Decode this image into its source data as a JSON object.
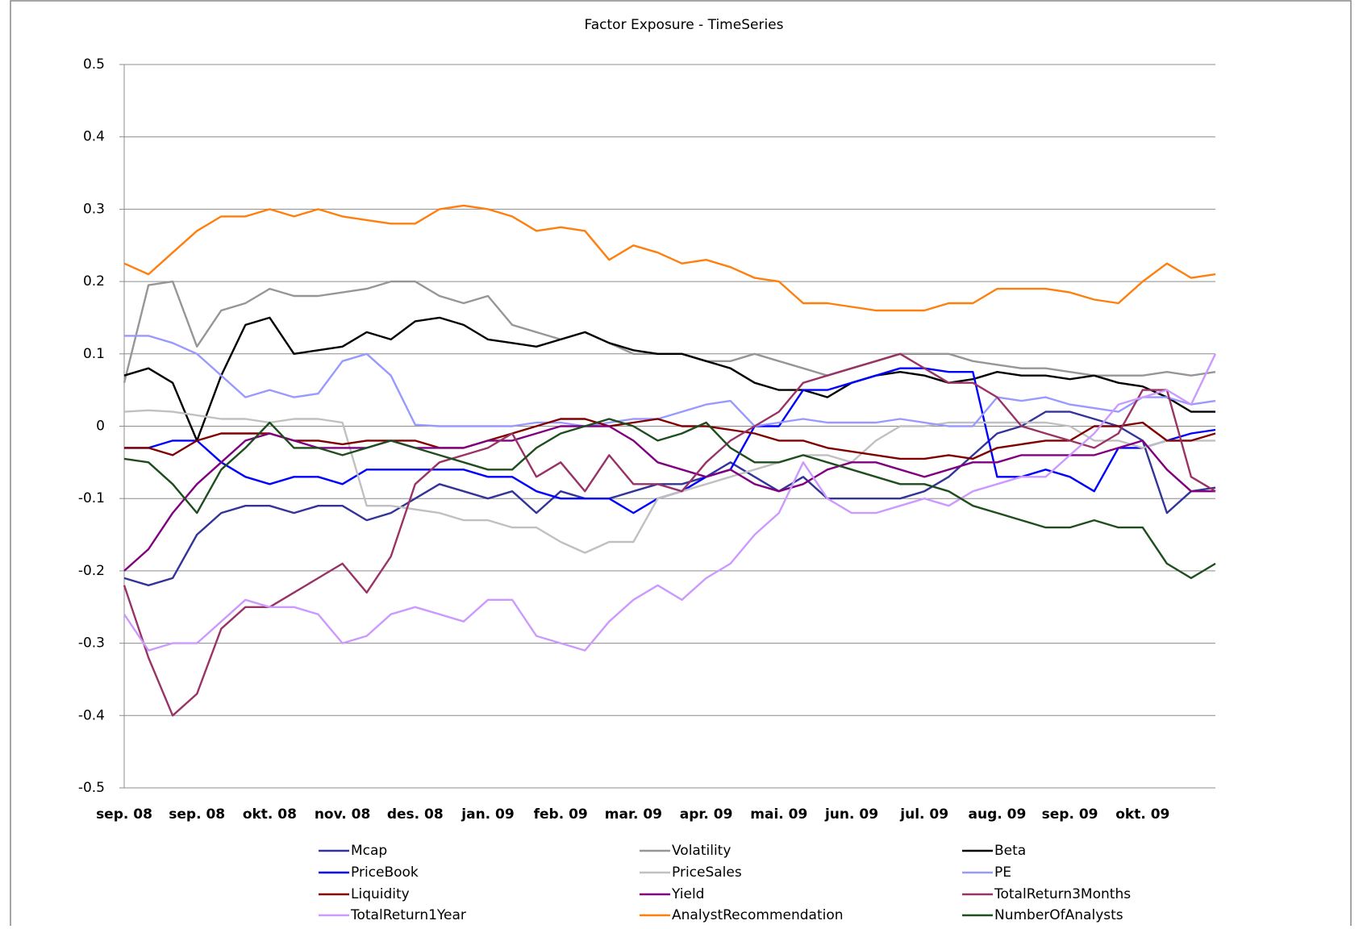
{
  "chart_data": {
    "type": "line",
    "title": "Factor Exposure - TimeSeries",
    "categories": [
      "sep. 08",
      null,
      null,
      "sep. 08",
      null,
      null,
      "okt. 08",
      null,
      null,
      "nov. 08",
      null,
      null,
      "des. 08",
      null,
      null,
      "jan. 09",
      null,
      null,
      "feb. 09",
      null,
      null,
      "mar. 09",
      null,
      null,
      "apr. 09",
      null,
      null,
      "mai. 09",
      null,
      null,
      "jun. 09",
      null,
      null,
      "jul. 09",
      null,
      null,
      "aug. 09",
      null,
      null,
      "sep. 09",
      null,
      null,
      "okt. 09",
      null,
      null,
      null
    ],
    "ylim": [
      -0.5,
      0.5
    ],
    "yticks": [
      0.5,
      0.4,
      0.3,
      0.2,
      0.1,
      0,
      -0.1,
      -0.2,
      -0.3,
      -0.4,
      -0.5
    ],
    "grid": true,
    "legend": "bottom",
    "series": [
      {
        "name": "Mcap",
        "color": "#333399",
        "values": [
          -0.21,
          -0.22,
          -0.21,
          -0.15,
          -0.12,
          -0.11,
          -0.11,
          -0.12,
          -0.11,
          -0.11,
          -0.13,
          -0.12,
          -0.1,
          -0.08,
          -0.09,
          -0.1,
          -0.09,
          -0.12,
          -0.09,
          -0.1,
          -0.1,
          -0.09,
          -0.08,
          -0.08,
          -0.07,
          -0.05,
          -0.07,
          -0.09,
          -0.07,
          -0.1,
          -0.1,
          -0.1,
          -0.1,
          -0.09,
          -0.07,
          -0.04,
          -0.01,
          0.0,
          0.02,
          0.02,
          0.01,
          0.0,
          -0.02,
          -0.12,
          -0.09,
          -0.085
        ]
      },
      {
        "name": "Volatility",
        "color": "#969696",
        "values": [
          0.06,
          0.195,
          0.2,
          0.11,
          0.16,
          0.17,
          0.19,
          0.18,
          0.18,
          0.185,
          0.19,
          0.2,
          0.2,
          0.18,
          0.17,
          0.18,
          0.14,
          0.13,
          0.12,
          0.13,
          0.115,
          0.1,
          0.1,
          0.1,
          0.09,
          0.09,
          0.1,
          0.09,
          0.08,
          0.07,
          0.08,
          0.09,
          0.1,
          0.1,
          0.1,
          0.09,
          0.085,
          0.08,
          0.08,
          0.075,
          0.07,
          0.07,
          0.07,
          0.075,
          0.07,
          0.075
        ]
      },
      {
        "name": "Beta",
        "color": "#000000",
        "values": [
          0.07,
          0.08,
          0.06,
          -0.02,
          0.07,
          0.14,
          0.15,
          0.1,
          0.105,
          0.11,
          0.13,
          0.12,
          0.145,
          0.15,
          0.14,
          0.12,
          0.115,
          0.11,
          0.12,
          0.13,
          0.115,
          0.105,
          0.1,
          0.1,
          0.09,
          0.08,
          0.06,
          0.05,
          0.05,
          0.04,
          0.06,
          0.07,
          0.075,
          0.07,
          0.06,
          0.065,
          0.075,
          0.07,
          0.07,
          0.065,
          0.07,
          0.06,
          0.055,
          0.04,
          0.02,
          0.02
        ]
      },
      {
        "name": "PriceBook",
        "color": "#0000ff",
        "values": [
          -0.03,
          -0.03,
          -0.02,
          -0.02,
          -0.05,
          -0.07,
          -0.08,
          -0.07,
          -0.07,
          -0.08,
          -0.06,
          -0.06,
          -0.06,
          -0.06,
          -0.06,
          -0.07,
          -0.07,
          -0.09,
          -0.1,
          -0.1,
          -0.1,
          -0.12,
          -0.1,
          -0.09,
          -0.07,
          -0.06,
          0.0,
          0.0,
          0.05,
          0.05,
          0.06,
          0.07,
          0.08,
          0.08,
          0.075,
          0.075,
          -0.07,
          -0.07,
          -0.06,
          -0.07,
          -0.09,
          -0.03,
          -0.03,
          -0.02,
          -0.01,
          -0.005
        ]
      },
      {
        "name": "PriceSales",
        "color": "#c0c0c0",
        "values": [
          0.02,
          0.022,
          0.02,
          0.015,
          0.01,
          0.01,
          0.005,
          0.01,
          0.01,
          0.005,
          -0.11,
          -0.11,
          -0.115,
          -0.12,
          -0.13,
          -0.13,
          -0.14,
          -0.14,
          -0.16,
          -0.175,
          -0.16,
          -0.16,
          -0.1,
          -0.09,
          -0.08,
          -0.07,
          -0.06,
          -0.05,
          -0.04,
          -0.04,
          -0.05,
          -0.02,
          0.0,
          0.0,
          0.005,
          0.005,
          0.005,
          0.005,
          0.005,
          0.0,
          -0.02,
          -0.02,
          -0.03,
          -0.02,
          -0.02,
          -0.02
        ]
      },
      {
        "name": "PE",
        "color": "#9999ff",
        "values": [
          0.125,
          0.125,
          0.115,
          0.1,
          0.07,
          0.04,
          0.05,
          0.04,
          0.045,
          0.09,
          0.1,
          0.07,
          0.002,
          0.0,
          0.0,
          0.0,
          0.0,
          0.005,
          0.005,
          0.0,
          0.005,
          0.01,
          0.01,
          0.02,
          0.03,
          0.035,
          0.0,
          0.005,
          0.01,
          0.005,
          0.005,
          0.005,
          0.01,
          0.005,
          0.0,
          0.0,
          0.04,
          0.035,
          0.04,
          0.03,
          0.025,
          0.02,
          0.04,
          0.04,
          0.03,
          0.035
        ]
      },
      {
        "name": "Liquidity",
        "color": "#800000",
        "values": [
          -0.03,
          -0.03,
          -0.04,
          -0.02,
          -0.01,
          -0.01,
          -0.01,
          -0.02,
          -0.02,
          -0.025,
          -0.02,
          -0.02,
          -0.02,
          -0.03,
          -0.03,
          -0.02,
          -0.01,
          0.0,
          0.01,
          0.01,
          0.0,
          0.005,
          0.01,
          0.0,
          0.0,
          -0.005,
          -0.01,
          -0.02,
          -0.02,
          -0.03,
          -0.035,
          -0.04,
          -0.045,
          -0.045,
          -0.04,
          -0.045,
          -0.03,
          -0.025,
          -0.02,
          -0.02,
          0.0,
          0.0,
          0.005,
          -0.02,
          -0.02,
          -0.01
        ]
      },
      {
        "name": "Yield",
        "color": "#800080",
        "values": [
          -0.2,
          -0.17,
          -0.12,
          -0.08,
          -0.05,
          -0.02,
          -0.01,
          -0.02,
          -0.03,
          -0.03,
          -0.03,
          -0.02,
          -0.03,
          -0.03,
          -0.03,
          -0.02,
          -0.02,
          -0.01,
          0.0,
          0.0,
          0.0,
          -0.02,
          -0.05,
          -0.06,
          -0.07,
          -0.06,
          -0.08,
          -0.09,
          -0.08,
          -0.06,
          -0.05,
          -0.05,
          -0.06,
          -0.07,
          -0.06,
          -0.05,
          -0.05,
          -0.04,
          -0.04,
          -0.04,
          -0.04,
          -0.03,
          -0.02,
          -0.06,
          -0.09,
          -0.09
        ]
      },
      {
        "name": "TotalReturn3Months",
        "color": "#993366",
        "values": [
          -0.22,
          -0.32,
          -0.4,
          -0.37,
          -0.28,
          -0.25,
          -0.25,
          -0.23,
          -0.21,
          -0.19,
          -0.23,
          -0.18,
          -0.08,
          -0.05,
          -0.04,
          -0.03,
          -0.01,
          -0.07,
          -0.05,
          -0.09,
          -0.04,
          -0.08,
          -0.08,
          -0.09,
          -0.05,
          -0.02,
          0.0,
          0.02,
          0.06,
          0.07,
          0.08,
          0.09,
          0.1,
          0.08,
          0.06,
          0.06,
          0.04,
          0.0,
          -0.01,
          -0.02,
          -0.03,
          -0.01,
          0.05,
          0.05,
          -0.07,
          -0.09
        ]
      },
      {
        "name": "TotalReturn1Year",
        "color": "#cc99ff",
        "values": [
          -0.26,
          -0.31,
          -0.3,
          -0.3,
          -0.27,
          -0.24,
          -0.25,
          -0.25,
          -0.26,
          -0.3,
          -0.29,
          -0.26,
          -0.25,
          -0.26,
          -0.27,
          -0.24,
          -0.24,
          -0.29,
          -0.3,
          -0.31,
          -0.27,
          -0.24,
          -0.22,
          -0.24,
          -0.21,
          -0.19,
          -0.15,
          -0.12,
          -0.05,
          -0.1,
          -0.12,
          -0.12,
          -0.11,
          -0.1,
          -0.11,
          -0.09,
          -0.08,
          -0.07,
          -0.07,
          -0.04,
          -0.01,
          0.03,
          0.04,
          0.05,
          0.03,
          0.1
        ]
      },
      {
        "name": "AnalystRecommendation",
        "color": "#ff7f0e",
        "values": [
          0.225,
          0.21,
          0.24,
          0.27,
          0.29,
          0.29,
          0.3,
          0.29,
          0.3,
          0.29,
          0.285,
          0.28,
          0.28,
          0.3,
          0.305,
          0.3,
          0.29,
          0.27,
          0.275,
          0.27,
          0.23,
          0.25,
          0.24,
          0.225,
          0.23,
          0.22,
          0.205,
          0.2,
          0.17,
          0.17,
          0.165,
          0.16,
          0.16,
          0.16,
          0.17,
          0.17,
          0.19,
          0.19,
          0.19,
          0.185,
          0.175,
          0.17,
          0.2,
          0.225,
          0.205,
          0.21
        ]
      },
      {
        "name": "NumberOfAnalysts",
        "color": "#1e4d1e",
        "values": [
          -0.045,
          -0.05,
          -0.08,
          -0.12,
          -0.06,
          -0.03,
          0.005,
          -0.03,
          -0.03,
          -0.04,
          -0.03,
          -0.02,
          -0.03,
          -0.04,
          -0.05,
          -0.06,
          -0.06,
          -0.03,
          -0.01,
          0.0,
          0.01,
          0.0,
          -0.02,
          -0.01,
          0.005,
          -0.03,
          -0.05,
          -0.05,
          -0.04,
          -0.05,
          -0.06,
          -0.07,
          -0.08,
          -0.08,
          -0.09,
          -0.11,
          -0.12,
          -0.13,
          -0.14,
          -0.14,
          -0.13,
          -0.14,
          -0.14,
          -0.19,
          -0.21,
          -0.19
        ]
      }
    ]
  }
}
